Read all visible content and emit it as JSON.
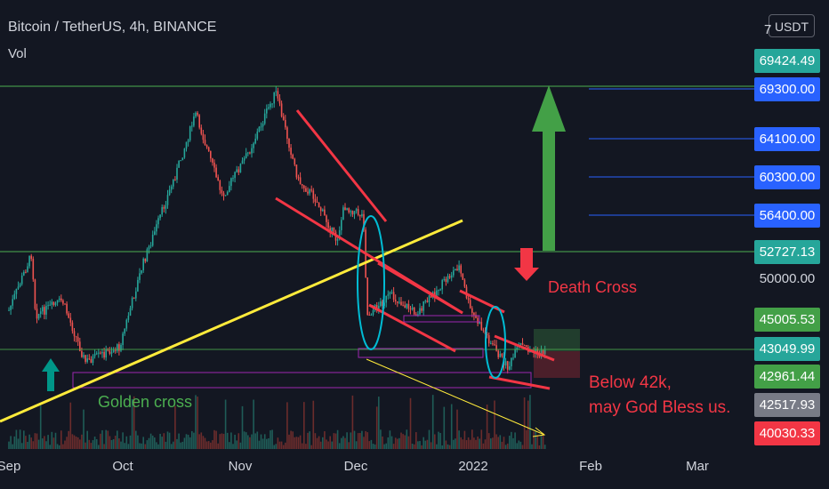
{
  "header": {
    "title": "Bitcoin / TetherUS, 4h, BINANCE",
    "volume_label": "Vol",
    "currency": "USDT"
  },
  "price_tags": [
    {
      "label": "69424.49",
      "color": "#26a69a"
    },
    {
      "label": "69300.00",
      "color": "#2962ff"
    },
    {
      "label": "64100.00",
      "color": "#2962ff"
    },
    {
      "label": "60300.00",
      "color": "#2962ff"
    },
    {
      "label": "56400.00",
      "color": "#2962ff"
    },
    {
      "label": "52727.13",
      "color": "#26a69a"
    },
    {
      "label": "45005.53",
      "color": "#43a047"
    },
    {
      "label": "43049.99",
      "color": "#26a69a"
    },
    {
      "label": "42961.44",
      "color": "#43a047"
    },
    {
      "label": "42517.93",
      "color": "#787b86"
    },
    {
      "label": "40030.33",
      "color": "#f23645"
    }
  ],
  "price_labels": [
    "7",
    "50000.00"
  ],
  "annotations": {
    "golden_cross": "Golden cross",
    "death_cross": "Death Cross",
    "warning_line1": "Below 42k,",
    "warning_line2": "may God Bless us."
  },
  "colors": {
    "up": "#26a69a",
    "down": "#ef5350",
    "trend_yellow": "#ffeb3b",
    "channel_red": "#f23645",
    "level_green": "#4caf50",
    "level_blue": "#2962ff"
  },
  "chart_data": {
    "type": "candlestick",
    "title": "Bitcoin / TetherUS, 4h, BINANCE",
    "x_ticks": [
      "Sep",
      "Oct",
      "Nov",
      "Dec",
      "2022",
      "Feb",
      "Mar"
    ],
    "y_tick_labels": [
      "50000.00"
    ],
    "price_path": [
      {
        "date": "2021-09-01",
        "price": 47000
      },
      {
        "date": "2021-09-07",
        "price": 52700
      },
      {
        "date": "2021-09-08",
        "price": 46500
      },
      {
        "date": "2021-09-15",
        "price": 48000
      },
      {
        "date": "2021-09-21",
        "price": 41800
      },
      {
        "date": "2021-09-30",
        "price": 43300
      },
      {
        "date": "2021-10-06",
        "price": 51500
      },
      {
        "date": "2021-10-15",
        "price": 61000
      },
      {
        "date": "2021-10-20",
        "price": 66800
      },
      {
        "date": "2021-10-27",
        "price": 58500
      },
      {
        "date": "2021-11-03",
        "price": 63000
      },
      {
        "date": "2021-11-10",
        "price": 69000
      },
      {
        "date": "2021-11-16",
        "price": 60000
      },
      {
        "date": "2021-11-20",
        "price": 58500
      },
      {
        "date": "2021-11-26",
        "price": 54000
      },
      {
        "date": "2021-11-28",
        "price": 57500
      },
      {
        "date": "2021-12-03",
        "price": 56500
      },
      {
        "date": "2021-12-04",
        "price": 46500
      },
      {
        "date": "2021-12-10",
        "price": 48500
      },
      {
        "date": "2021-12-17",
        "price": 46700
      },
      {
        "date": "2021-12-28",
        "price": 51500
      },
      {
        "date": "2021-12-31",
        "price": 47000
      },
      {
        "date": "2022-01-07",
        "price": 42800
      },
      {
        "date": "2022-01-10",
        "price": 41200
      },
      {
        "date": "2022-01-13",
        "price": 43500
      },
      {
        "date": "2022-01-18",
        "price": 42500
      },
      {
        "date": "2022-01-20",
        "price": 43049.99
      }
    ],
    "levels": [
      69424.49,
      69300.0,
      64100.0,
      60300.0,
      56400.0,
      52727.13,
      45005.53,
      43049.99,
      42961.44,
      42517.93,
      40030.33
    ],
    "volume_label": "Vol"
  }
}
